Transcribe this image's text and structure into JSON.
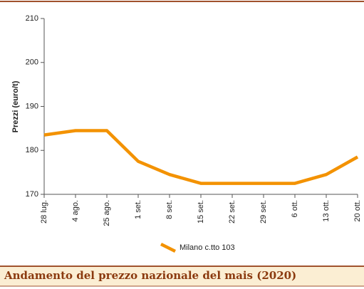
{
  "chart_data": {
    "type": "line",
    "title": "Andamento del prezzo nazionale del mais (2020)",
    "y_label": "Prezzi (euro/t)",
    "categories": [
      "28 lug.",
      "4 ago.",
      "25 ago.",
      "1 set.",
      "8 set.",
      "15 set.",
      "22 set.",
      "29 set.",
      "6 ott.",
      "13 ott.",
      "20 ott."
    ],
    "series": [
      {
        "name": "Milano c.tto 103",
        "color": "#f39200",
        "values": [
          183.5,
          184.5,
          184.5,
          177.5,
          174.5,
          172.5,
          172.5,
          172.5,
          172.5,
          174.5,
          178.5
        ]
      }
    ],
    "ylim": [
      170,
      210
    ],
    "yticks": [
      170,
      180,
      190,
      200,
      210
    ],
    "grid": false
  }
}
